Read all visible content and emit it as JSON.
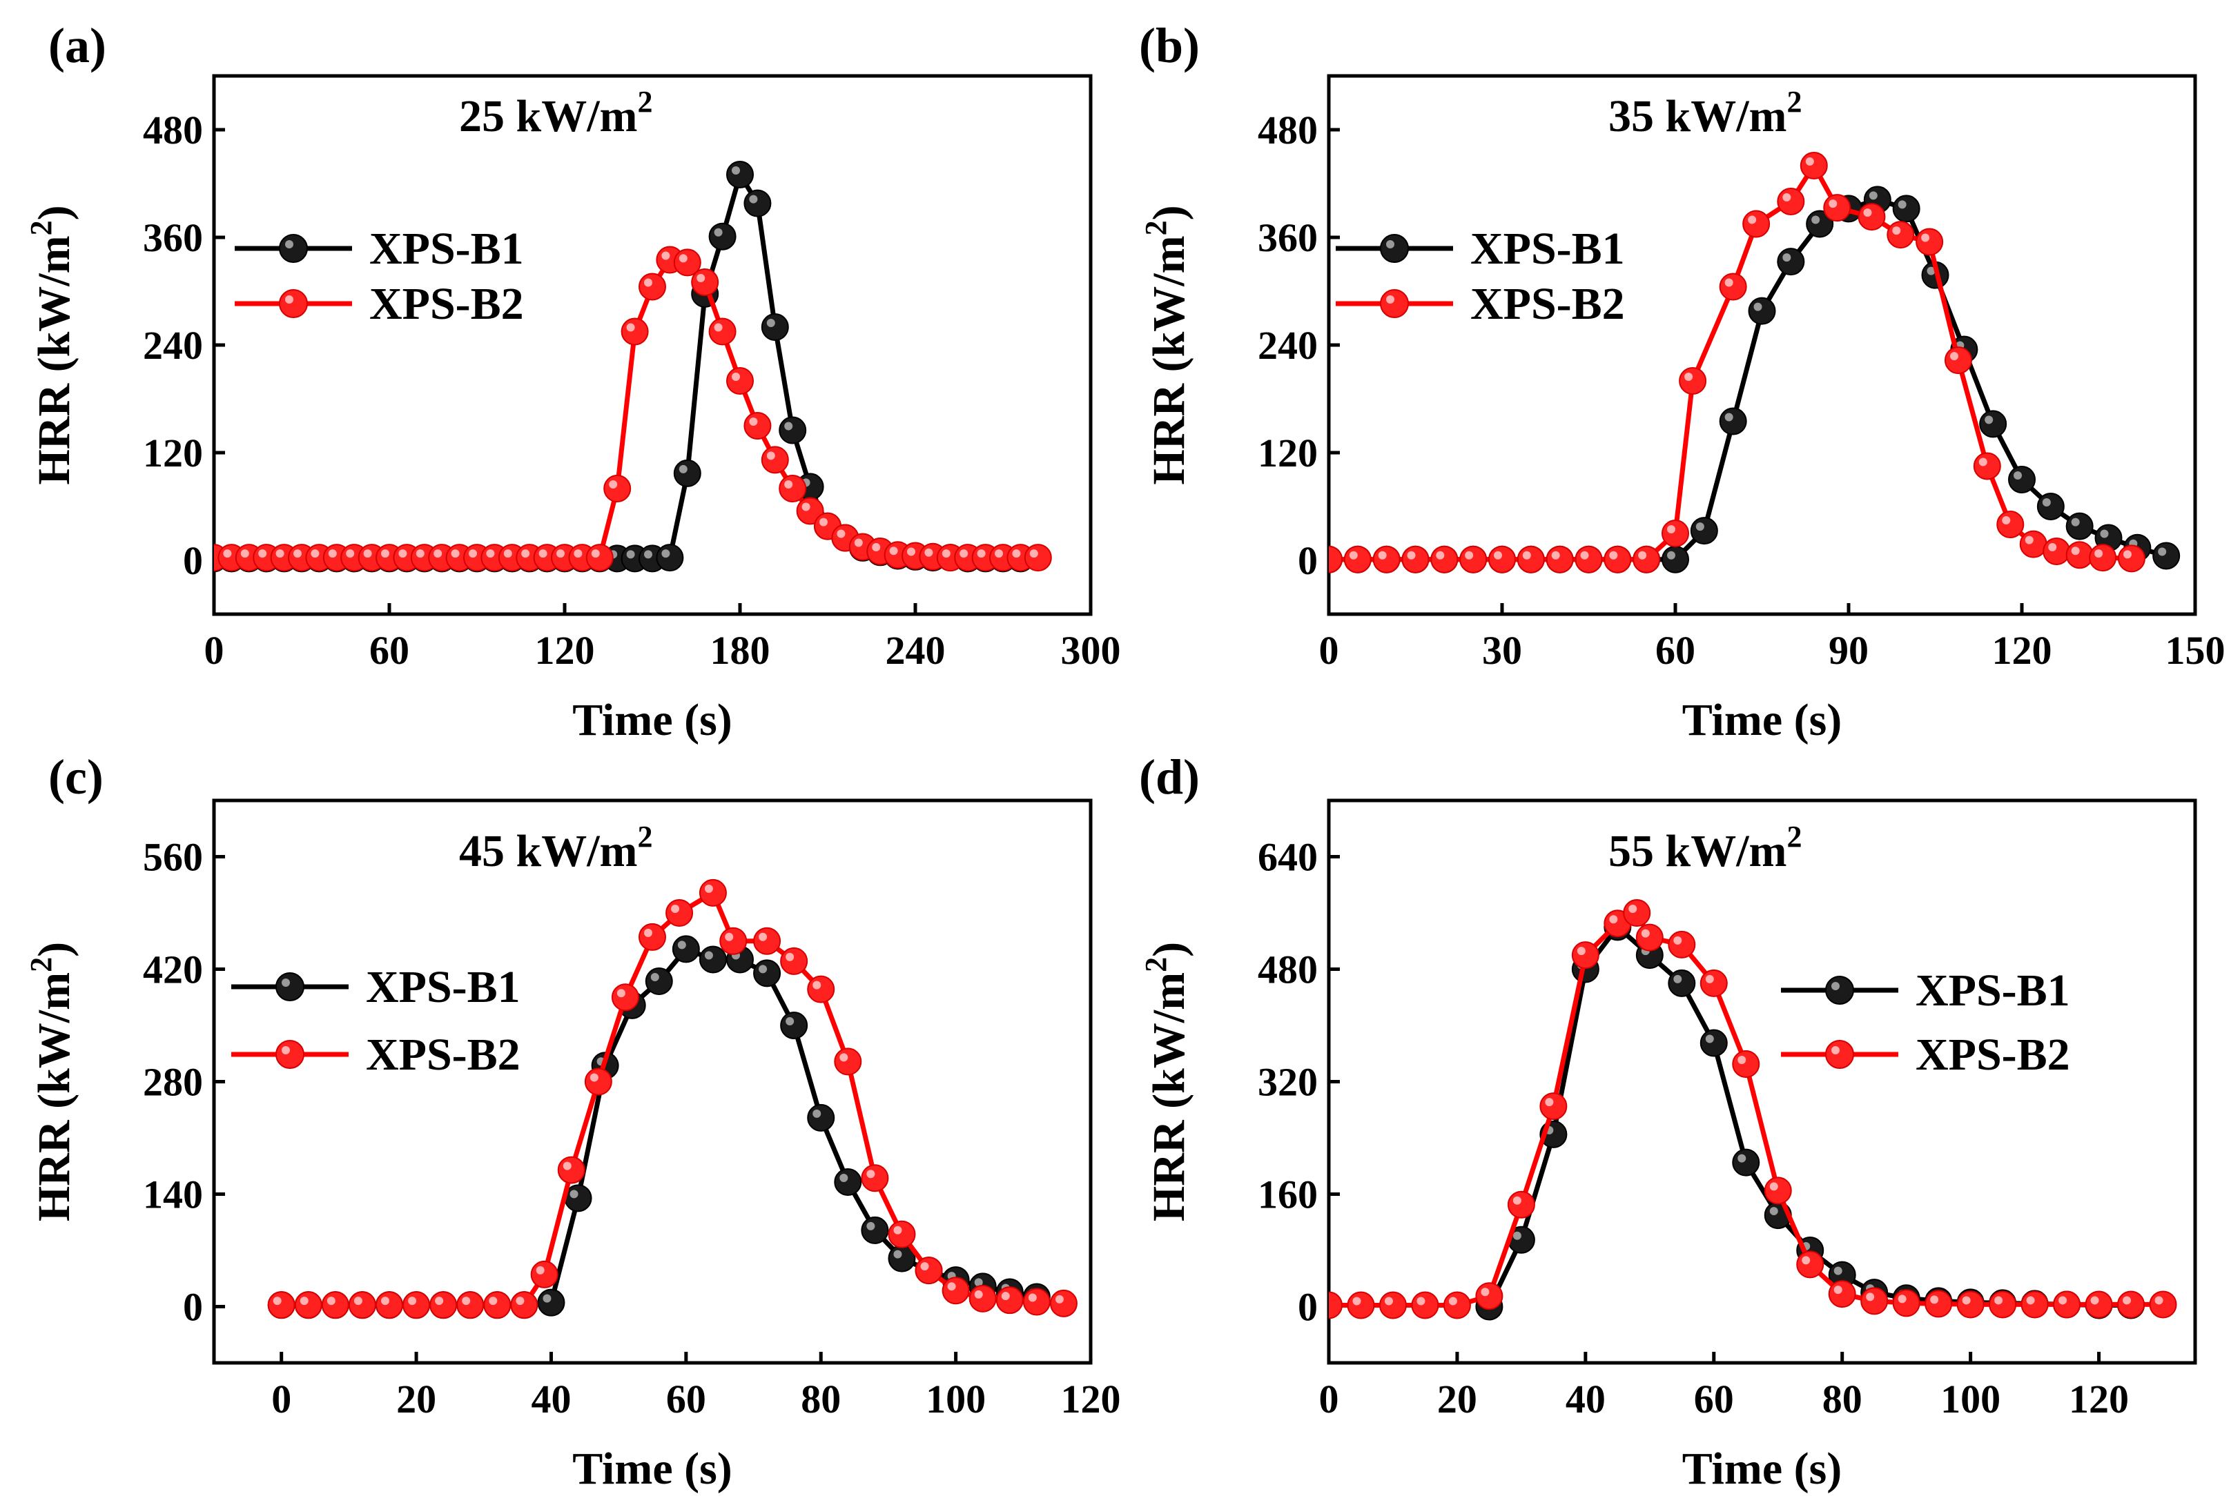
{
  "chart_data": [
    {
      "type": "line",
      "panel_label": "(a)",
      "title": "25 kW/m",
      "title_sup": "2",
      "xlabel": "Time (s)",
      "ylabel": "HRR (kW/m",
      "ylabel_sup": "2",
      "ylabel_close": ")",
      "xlim": [
        0,
        300
      ],
      "ylim": [
        -60,
        540
      ],
      "xticks": [
        0,
        60,
        120,
        180,
        240,
        300
      ],
      "yticks": [
        0,
        120,
        240,
        360,
        480
      ],
      "legend_position": "upper-left",
      "series": [
        {
          "name": "XPS-B1",
          "color": "#000000",
          "x": [
            0,
            6,
            12,
            18,
            24,
            30,
            36,
            42,
            48,
            54,
            60,
            66,
            72,
            78,
            84,
            90,
            96,
            102,
            108,
            114,
            120,
            126,
            132,
            138,
            144,
            150,
            156,
            162,
            168,
            174,
            180,
            186,
            192,
            198,
            204,
            210,
            216,
            222,
            228,
            234,
            240,
            246,
            252,
            258,
            264,
            270,
            276
          ],
          "y": [
            2,
            2,
            2,
            2,
            2,
            2,
            2,
            2,
            2,
            2,
            2,
            2,
            2,
            2,
            2,
            2,
            2,
            2,
            2,
            2,
            2,
            2,
            2,
            2,
            2,
            2,
            3,
            97,
            297,
            361,
            430,
            398,
            260,
            145,
            82,
            38,
            25,
            14,
            9,
            5,
            4,
            3,
            3,
            2,
            2,
            2,
            2
          ]
        },
        {
          "name": "XPS-B2",
          "color": "#ff0000",
          "x": [
            0,
            6,
            12,
            18,
            24,
            30,
            36,
            42,
            48,
            54,
            60,
            66,
            72,
            78,
            84,
            90,
            96,
            102,
            108,
            114,
            120,
            126,
            132,
            138,
            144,
            150,
            156,
            162,
            168,
            174,
            180,
            186,
            192,
            198,
            204,
            210,
            216,
            222,
            228,
            234,
            240,
            246,
            252,
            258,
            264,
            270,
            276,
            282
          ],
          "y": [
            3,
            3,
            3,
            3,
            3,
            3,
            3,
            3,
            3,
            3,
            3,
            3,
            3,
            3,
            3,
            3,
            3,
            3,
            3,
            3,
            3,
            3,
            3,
            80,
            255,
            305,
            335,
            332,
            310,
            255,
            200,
            150,
            112,
            80,
            55,
            38,
            25,
            15,
            10,
            6,
            5,
            4,
            3,
            3,
            3,
            3,
            3,
            3
          ]
        }
      ]
    },
    {
      "type": "line",
      "panel_label": "(b)",
      "title": "35 kW/m",
      "title_sup": "2",
      "xlabel": "Time (s)",
      "ylabel": "HRR (kW/m",
      "ylabel_sup": "2",
      "ylabel_close": ")",
      "xlim": [
        0,
        150
      ],
      "ylim": [
        -60,
        540
      ],
      "xticks": [
        0,
        30,
        60,
        90,
        120,
        150
      ],
      "yticks": [
        0,
        120,
        240,
        360,
        480
      ],
      "legend_position": "upper-left",
      "series": [
        {
          "name": "XPS-B1",
          "color": "#000000",
          "x": [
            0,
            5,
            10,
            15,
            20,
            25,
            30,
            35,
            40,
            45,
            50,
            55,
            60,
            65,
            70,
            75,
            80,
            85,
            90,
            95,
            100,
            105,
            110,
            115,
            120,
            125,
            130,
            135,
            140,
            145
          ],
          "y": [
            1,
            1,
            1,
            1,
            1,
            1,
            1,
            1,
            1,
            1,
            1,
            1,
            1,
            33,
            155,
            278,
            333,
            375,
            392,
            402,
            392,
            318,
            235,
            152,
            90,
            60,
            38,
            25,
            14,
            5
          ]
        },
        {
          "name": "XPS-B2",
          "color": "#ff0000",
          "x": [
            0,
            5,
            10,
            15,
            20,
            25,
            30,
            35,
            40,
            45,
            50,
            55,
            60,
            63,
            70,
            74,
            80,
            84,
            88,
            94,
            99,
            104,
            109,
            114,
            118,
            122,
            126,
            130,
            134,
            139
          ],
          "y": [
            1,
            1,
            1,
            1,
            1,
            1,
            1,
            1,
            1,
            1,
            1,
            1,
            30,
            200,
            305,
            375,
            400,
            440,
            393,
            383,
            363,
            355,
            223,
            105,
            40,
            18,
            10,
            6,
            3,
            2
          ]
        }
      ]
    },
    {
      "type": "line",
      "panel_label": "(c)",
      "title": "45 kW/m",
      "title_sup": "2",
      "xlabel": "Time (s)",
      "ylabel": "HRR (kW/m",
      "ylabel_sup": "2",
      "ylabel_close": ")",
      "xlim": [
        -10,
        120
      ],
      "ylim": [
        -70,
        630
      ],
      "xticks": [
        0,
        20,
        40,
        60,
        80,
        100,
        120
      ],
      "yticks": [
        0,
        140,
        280,
        420,
        560
      ],
      "legend_position": "upper-left",
      "series": [
        {
          "name": "XPS-B1",
          "color": "#000000",
          "x": [
            0,
            4,
            8,
            12,
            16,
            20,
            24,
            28,
            32,
            36,
            40,
            44,
            48,
            52,
            56,
            60,
            64,
            68,
            72,
            76,
            80,
            84,
            88,
            92,
            96,
            100,
            104,
            108,
            112
          ],
          "y": [
            2,
            2,
            2,
            2,
            2,
            2,
            2,
            2,
            2,
            2,
            5,
            135,
            300,
            375,
            405,
            445,
            432,
            432,
            415,
            350,
            235,
            155,
            95,
            60,
            45,
            33,
            25,
            18,
            12
          ]
        },
        {
          "name": "XPS-B2",
          "color": "#ff0000",
          "x": [
            0,
            4,
            8,
            12,
            16,
            20,
            24,
            28,
            32,
            36,
            39,
            43,
            47,
            51,
            55,
            59,
            64,
            67,
            72,
            76,
            80,
            84,
            88,
            92,
            96,
            100,
            104,
            108,
            112,
            116
          ],
          "y": [
            2,
            2,
            2,
            2,
            2,
            2,
            2,
            2,
            2,
            2,
            40,
            170,
            280,
            385,
            460,
            490,
            515,
            455,
            455,
            430,
            395,
            305,
            160,
            90,
            45,
            20,
            10,
            8,
            6,
            4
          ]
        }
      ]
    },
    {
      "type": "line",
      "panel_label": "(d)",
      "title": "55 kW/m",
      "title_sup": "2",
      "xlabel": "Time (s)",
      "ylabel": "HRR (kW/m",
      "ylabel_sup": "2",
      "ylabel_close": ")",
      "xlim": [
        0,
        135
      ],
      "ylim": [
        -80,
        720
      ],
      "xticks": [
        0,
        20,
        40,
        60,
        80,
        100,
        120
      ],
      "yticks": [
        0,
        160,
        320,
        480,
        640
      ],
      "legend_position": "right",
      "series": [
        {
          "name": "XPS-B1",
          "color": "#000000",
          "x": [
            25,
            30,
            35,
            40,
            45,
            50,
            55,
            60,
            65,
            70,
            75,
            80,
            85,
            90,
            95,
            100,
            105,
            110,
            115,
            120,
            125
          ],
          "y": [
            0,
            95,
            245,
            480,
            540,
            500,
            460,
            375,
            205,
            130,
            80,
            45,
            20,
            12,
            8,
            6,
            5,
            4,
            3,
            2,
            2
          ]
        },
        {
          "name": "XPS-B2",
          "color": "#ff0000",
          "x": [
            0,
            5,
            10,
            15,
            20,
            25,
            30,
            35,
            40,
            45,
            48,
            50,
            55,
            60,
            65,
            70,
            75,
            80,
            85,
            90,
            95,
            100,
            105,
            110,
            115,
            120,
            125,
            130
          ],
          "y": [
            2,
            2,
            2,
            2,
            2,
            15,
            145,
            285,
            500,
            545,
            560,
            525,
            515,
            460,
            345,
            165,
            60,
            18,
            8,
            5,
            4,
            3,
            3,
            3,
            3,
            3,
            3,
            3
          ]
        }
      ]
    }
  ]
}
